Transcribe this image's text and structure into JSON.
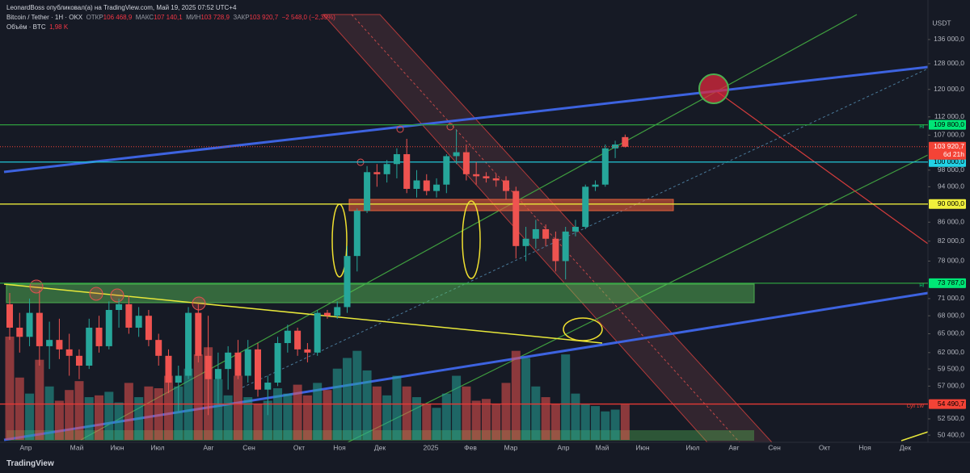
{
  "header": {
    "author_line": "LeonardBoss опубликовал(а) на TradingView.com, Май 19, 2025 07:52 UTC+4",
    "symbol": "Bitcoin / Tether · 1Н · OKX",
    "open_label": "ОТКР",
    "open": "106 468,9",
    "high_label": "МАКС",
    "high": "107 140,1",
    "low_label": "МИН",
    "low": "103 728,9",
    "close_label": "ЗАКР",
    "close": "103 920,7",
    "change": "−2 548,0 (−2,39%)",
    "volume_label": "Объём · BTC",
    "volume": "1,98 K"
  },
  "footer": {
    "logo": "TradingView"
  },
  "chart_data": {
    "type": "candlestick",
    "log_scale": true,
    "currency": "USDT",
    "up_color": "#26a69a",
    "down_color": "#ef5350",
    "ylim": [
      49500,
      144800
    ],
    "yticks": [
      {
        "value": 136000,
        "label": "136 000,0"
      },
      {
        "value": 128000,
        "label": "128 000,0"
      },
      {
        "value": 120000,
        "label": "120 000,0"
      },
      {
        "value": 112000,
        "label": "112 000,0"
      },
      {
        "value": 107000,
        "label": "107 000,0"
      },
      {
        "value": 98000,
        "label": "98 000,0"
      },
      {
        "value": 94000,
        "label": "94 000,0"
      },
      {
        "value": 86000,
        "label": "86 000,0"
      },
      {
        "value": 82000,
        "label": "82 000,0"
      },
      {
        "value": 78000,
        "label": "78 000,0"
      },
      {
        "value": 71000,
        "label": "71 000,0"
      },
      {
        "value": 68000,
        "label": "68 000,0"
      },
      {
        "value": 65000,
        "label": "65 000,0"
      },
      {
        "value": 62000,
        "label": "62 000,0"
      },
      {
        "value": 59500,
        "label": "59 500,0"
      },
      {
        "value": 57000,
        "label": "57 000,0"
      },
      {
        "value": 52500,
        "label": "52 500,0"
      },
      {
        "value": 50400,
        "label": "50 400,0"
      }
    ],
    "x_labels": [
      "Апр",
      "Май",
      "Июн",
      "Июл",
      "Авг",
      "Сен",
      "Окт",
      "Ноя",
      "Дек",
      "2025",
      "Фев",
      "Мар",
      "Апр",
      "Май",
      "Июн",
      "Июл",
      "Авг",
      "Сен",
      "Окт",
      "Ноя",
      "Дек"
    ],
    "open": [
      70000,
      66000,
      64500,
      68500,
      63000,
      64000,
      62500,
      61500,
      60000,
      66000,
      63000,
      69000,
      70000,
      66000,
      68000,
      64000,
      61500,
      57500,
      58500,
      68500,
      61500,
      58000,
      59500,
      62000,
      58500,
      62500,
      56500,
      57500,
      63500,
      65500,
      62500,
      62000,
      68500,
      68000,
      69500,
      79000,
      88500,
      97500,
      97000,
      99500,
      102000,
      93500,
      95500,
      93000,
      94500,
      101500,
      102500,
      97000,
      96500,
      96000,
      95500,
      93000,
      81000,
      82500,
      84500,
      82500,
      78000,
      84000,
      85000,
      94000,
      94500,
      103500,
      106468.9
    ],
    "high": [
      72000,
      68500,
      71000,
      72500,
      67000,
      67500,
      65000,
      62500,
      67500,
      68000,
      70500,
      71000,
      71500,
      69500,
      69000,
      65000,
      62500,
      60000,
      69500,
      70000,
      68000,
      62000,
      63000,
      64000,
      64000,
      63500,
      58500,
      64500,
      66500,
      66000,
      63500,
      69000,
      69000,
      70500,
      81000,
      89000,
      99000,
      99500,
      100500,
      103500,
      106000,
      98000,
      97000,
      96000,
      102000,
      108500,
      104500,
      100000,
      97500,
      97000,
      96500,
      94000,
      85000,
      86500,
      85500,
      84000,
      85000,
      86500,
      94500,
      95500,
      104500,
      105500,
      107140.1
    ],
    "low": [
      64000,
      62000,
      63000,
      60000,
      59500,
      61000,
      58500,
      58000,
      59500,
      62000,
      62500,
      66000,
      65000,
      64500,
      63000,
      60000,
      56000,
      53500,
      58000,
      60500,
      53000,
      54500,
      56500,
      58000,
      57500,
      55500,
      53000,
      57000,
      62000,
      61500,
      60500,
      61500,
      67500,
      67500,
      68500,
      76000,
      88000,
      94000,
      95000,
      96000,
      92500,
      91500,
      92000,
      91500,
      92500,
      99500,
      95500,
      94500,
      95000,
      94000,
      91000,
      78500,
      78000,
      80500,
      81000,
      76000,
      74500,
      83000,
      84500,
      93000,
      94000,
      101000,
      103728.9
    ],
    "close": [
      66000,
      64500,
      68500,
      63000,
      64000,
      62500,
      61500,
      60000,
      66000,
      63000,
      69000,
      70000,
      66000,
      68000,
      64000,
      61500,
      57500,
      58500,
      68500,
      61500,
      58000,
      59500,
      62000,
      58500,
      62500,
      56500,
      57500,
      63500,
      65500,
      62500,
      62000,
      68500,
      68000,
      69500,
      79000,
      88500,
      97500,
      97000,
      99500,
      102000,
      93500,
      95500,
      93000,
      94500,
      101500,
      102500,
      97000,
      96500,
      96000,
      95500,
      93000,
      81000,
      82500,
      84500,
      82500,
      78000,
      84000,
      85000,
      94000,
      94500,
      103500,
      104500,
      103920.7
    ],
    "volume": [
      5.8,
      3.5,
      2.6,
      4.5,
      3.0,
      2.2,
      2.8,
      3.3,
      2.4,
      2.5,
      2.7,
      2.1,
      3.2,
      2.4,
      3.0,
      2.9,
      3.6,
      3.0,
      4.0,
      4.8,
      5.2,
      3.4,
      2.5,
      3.6,
      2.4,
      2.0,
      2.2,
      2.9,
      2.6,
      3.1,
      2.5,
      3.2,
      2.8,
      4.0,
      4.6,
      5.0,
      3.9,
      3.0,
      2.5,
      3.6,
      3.0,
      2.4,
      2.0,
      1.8,
      2.6,
      3.6,
      3.0,
      2.2,
      2.3,
      2.0,
      3.2,
      5.0,
      4.6,
      3.0,
      2.4,
      2.0,
      4.8,
      2.6,
      2.0,
      1.9,
      1.6,
      1.7,
      1.98
    ],
    "levels": [
      {
        "value": 109800,
        "label": "109 800,0",
        "color": "#2e9e3e",
        "tag_color": "#00e676",
        "note": "Hl"
      },
      {
        "value": 100000,
        "label": "100 000,0",
        "color": "#22c6d6",
        "tag_color": "#22d3e6"
      },
      {
        "value": 90000,
        "label": "90 000,0",
        "color": "#e8e83a",
        "tag_color": "#f0f03c"
      },
      {
        "value": 73787,
        "label": "73 787,0",
        "color": "#2e9e3e",
        "tag_color": "#00e676",
        "note": "Hl"
      },
      {
        "value": 54490.7,
        "label": "54 490,7",
        "color": "#e53935",
        "tag_color": "#f44336",
        "note": "Cyn 1W"
      }
    ],
    "last_price": {
      "value": 103920.7,
      "label": "103 920,7",
      "countdown": "6d 21h",
      "color": "#f44336"
    }
  }
}
